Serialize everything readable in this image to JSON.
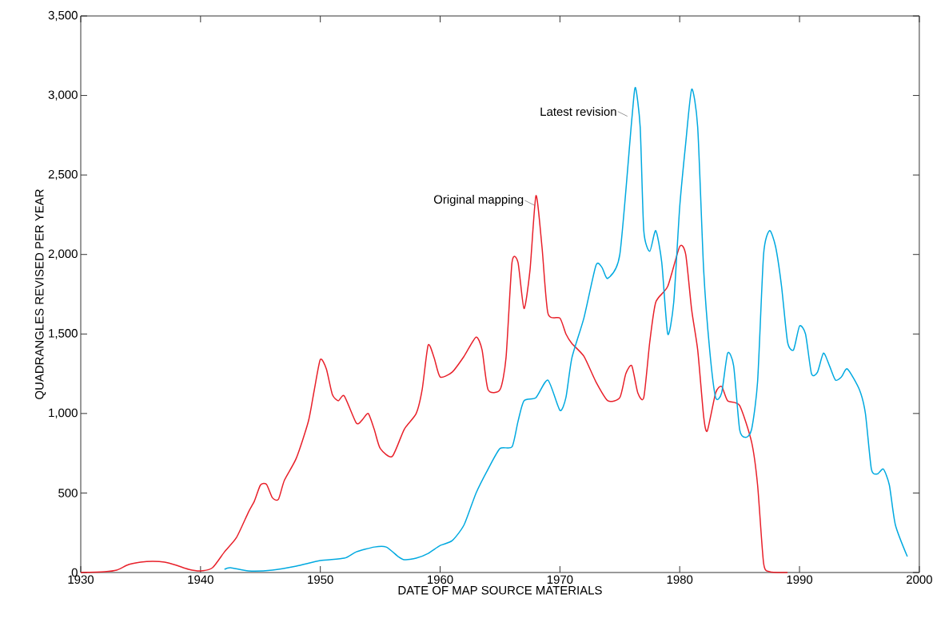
{
  "chart_data": {
    "type": "line",
    "xlabel": "DATE OF MAP SOURCE MATERIALS",
    "ylabel": "QUADRANGLES REVISED PER YEAR",
    "xlim": [
      1930,
      2000
    ],
    "xticks": [
      1930,
      1940,
      1950,
      1960,
      1970,
      1980,
      1990,
      2000
    ],
    "ylim": [
      0,
      3500
    ],
    "yticks": [
      0,
      500,
      {
        "value": 1000,
        "label": "1,000"
      },
      {
        "value": 1500,
        "label": "1,500"
      },
      {
        "value": 2000,
        "label": "2,000"
      },
      {
        "value": 2500,
        "label": "2,500"
      },
      {
        "value": 3000,
        "label": "3,000"
      },
      {
        "value": 3500,
        "label": "3,500"
      }
    ],
    "grid": false,
    "legend": false,
    "marker": "none",
    "line_style": "solid",
    "series": [
      {
        "name": "Original mapping",
        "color": "#e8202a",
        "x": [
          1930,
          1932,
          1933,
          1934,
          1935,
          1936,
          1937,
          1938,
          1939,
          1940,
          1941,
          1942,
          1943,
          1944,
          1944.5,
          1945,
          1945.5,
          1946,
          1946.5,
          1947,
          1948,
          1949,
          1949.5,
          1950,
          1950.5,
          1951,
          1951.5,
          1952,
          1953,
          1953.5,
          1954,
          1954.5,
          1955,
          1956,
          1957,
          1958,
          1958.5,
          1959,
          1959.5,
          1960,
          1961,
          1962,
          1963,
          1963.5,
          1964,
          1965,
          1965.5,
          1966,
          1966.5,
          1967,
          1967.5,
          1968,
          1968.5,
          1969,
          1970,
          1970.5,
          1971,
          1972,
          1973,
          1974,
          1975,
          1975.5,
          1976,
          1976.5,
          1977,
          1977.5,
          1978,
          1979,
          1980,
          1980.5,
          1981,
          1981.5,
          1982,
          1982.3,
          1983,
          1983.5,
          1984,
          1985,
          1986,
          1986.5,
          1987,
          1987.5,
          1989
        ],
        "values": [
          0,
          5,
          15,
          50,
          65,
          70,
          65,
          45,
          20,
          10,
          30,
          130,
          220,
          380,
          450,
          550,
          555,
          470,
          460,
          580,
          720,
          950,
          1150,
          1340,
          1280,
          1120,
          1080,
          1110,
          940,
          960,
          1000,
          900,
          780,
          730,
          900,
          1000,
          1150,
          1430,
          1350,
          1230,
          1260,
          1360,
          1480,
          1400,
          1150,
          1150,
          1350,
          1950,
          1950,
          1660,
          1900,
          2370,
          2050,
          1630,
          1600,
          1500,
          1440,
          1360,
          1200,
          1080,
          1100,
          1250,
          1300,
          1130,
          1100,
          1450,
          1700,
          1800,
          2050,
          2000,
          1650,
          1400,
          980,
          890,
          1130,
          1170,
          1080,
          1050,
          820,
          550,
          60,
          5,
          0
        ]
      },
      {
        "name": "Latest revision",
        "color": "#00a9e0",
        "x": [
          1942,
          1942.5,
          1944,
          1946,
          1948,
          1950,
          1952,
          1953,
          1954.5,
          1955.5,
          1956.5,
          1957,
          1958,
          1959,
          1960,
          1961,
          1962,
          1963,
          1964,
          1965,
          1966,
          1966.5,
          1967,
          1968,
          1969,
          1970,
          1970.5,
          1971,
          1972,
          1973,
          1973.5,
          1974,
          1975,
          1976,
          1976.3,
          1976.7,
          1977,
          1977.5,
          1978,
          1978.5,
          1979,
          1979.5,
          1980,
          1980.5,
          1981,
          1981.5,
          1982,
          1982.5,
          1983,
          1983.5,
          1984,
          1984.5,
          1985,
          1985.5,
          1986,
          1986.5,
          1987,
          1987.5,
          1988,
          1988.5,
          1989,
          1989.5,
          1990,
          1990.5,
          1991,
          1991.5,
          1992,
          1992.5,
          1993,
          1993.5,
          1994,
          1995,
          1995.5,
          1996,
          1996.5,
          1997,
          1997.5,
          1998,
          1999
        ],
        "values": [
          20,
          30,
          10,
          15,
          40,
          75,
          90,
          130,
          160,
          160,
          100,
          80,
          90,
          120,
          170,
          200,
          300,
          500,
          650,
          780,
          790,
          950,
          1080,
          1100,
          1210,
          1020,
          1100,
          1350,
          1600,
          1930,
          1920,
          1850,
          2000,
          2850,
          3050,
          2800,
          2150,
          2020,
          2150,
          1950,
          1500,
          1700,
          2300,
          2700,
          3040,
          2800,
          1900,
          1400,
          1100,
          1130,
          1380,
          1300,
          900,
          850,
          900,
          1200,
          2000,
          2150,
          2050,
          1800,
          1450,
          1400,
          1550,
          1500,
          1250,
          1260,
          1380,
          1300,
          1210,
          1230,
          1280,
          1150,
          1000,
          650,
          620,
          650,
          550,
          300,
          100
        ]
      }
    ]
  }
}
